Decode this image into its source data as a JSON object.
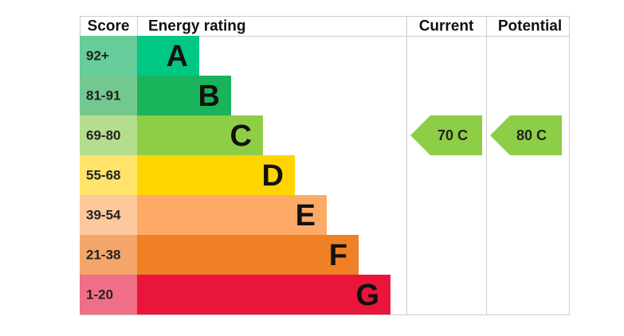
{
  "header": {
    "score": "Score",
    "rating": "Energy rating",
    "current": "Current",
    "potential": "Potential"
  },
  "bands": [
    {
      "score": "92+",
      "letter": "A",
      "bar_color": "#00c781",
      "score_color": "#66cc99"
    },
    {
      "score": "81-91",
      "letter": "B",
      "bar_color": "#19b459",
      "score_color": "#73c890"
    },
    {
      "score": "69-80",
      "letter": "C",
      "bar_color": "#8dce46",
      "score_color": "#b5dd8e"
    },
    {
      "score": "55-68",
      "letter": "D",
      "bar_color": "#ffd500",
      "score_color": "#ffe36a"
    },
    {
      "score": "39-54",
      "letter": "E",
      "bar_color": "#fcaa65",
      "score_color": "#fdc89c"
    },
    {
      "score": "21-38",
      "letter": "F",
      "bar_color": "#ef8023",
      "score_color": "#f4a66a"
    },
    {
      "score": "1-20",
      "letter": "G",
      "bar_color": "#e9153b",
      "score_color": "#f06e86"
    }
  ],
  "current": "70 C",
  "potential": "80 C"
}
